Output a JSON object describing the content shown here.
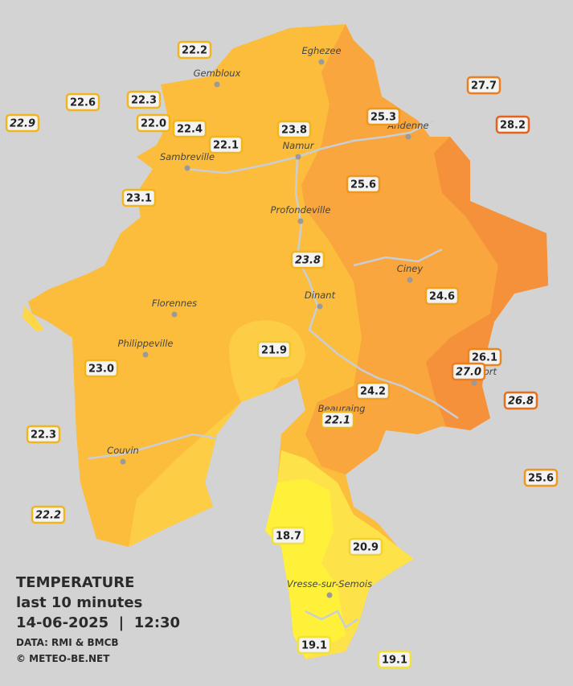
{
  "places": [
    "Eghezee",
    "Gembloux",
    "Andenne",
    "Namur",
    "Sambreville",
    "Profondeville",
    "Ciney",
    "Dinant",
    "Florennes",
    "Philippeville",
    "Beauraing",
    "Rochefort",
    "Couvin",
    "Vresse-sur-Semois"
  ],
  "stations": [
    {
      "text": "22.2",
      "color": "#f2b51d"
    },
    {
      "text": "22.6",
      "color": "#f2b51d"
    },
    {
      "text": "22.9",
      "color": "#f2b51d"
    },
    {
      "text": "22.3",
      "color": "#f2b51d"
    },
    {
      "text": "22.0",
      "color": "#f2b51d"
    },
    {
      "text": "22.4",
      "color": "#f2b51d"
    },
    {
      "text": "22.1",
      "color": "#f2b51d"
    },
    {
      "text": "23.8",
      "color": "#f2b51d"
    },
    {
      "text": "25.3",
      "color": "#f0961e"
    },
    {
      "text": "27.7",
      "color": "#ee7d1c"
    },
    {
      "text": "28.2",
      "color": "#e8601a"
    },
    {
      "text": "23.1",
      "color": "#f2b51d"
    },
    {
      "text": "25.6",
      "color": "#f0961e"
    },
    {
      "text": "23.8",
      "color": "#f2b51d"
    },
    {
      "text": "24.6",
      "color": "#f0a21f"
    },
    {
      "text": "21.9",
      "color": "#f2c72a"
    },
    {
      "text": "26.1",
      "color": "#ee851c"
    },
    {
      "text": "27.0",
      "color": "#ee7d1c"
    },
    {
      "text": "24.2",
      "color": "#f0a21f"
    },
    {
      "text": "26.8",
      "color": "#ea6d1b"
    },
    {
      "text": "22.1",
      "color": "#f2b51d"
    },
    {
      "text": "23.0",
      "color": "#f2b51d"
    },
    {
      "text": "22.3",
      "color": "#f2b51d"
    },
    {
      "text": "25.6",
      "color": "#f0961e"
    },
    {
      "text": "22.2",
      "color": "#f2b51d"
    },
    {
      "text": "18.7",
      "color": "#f3e13a"
    },
    {
      "text": "20.9",
      "color": "#f2d230"
    },
    {
      "text": "19.1",
      "color": "#f3e13a"
    },
    {
      "text": "19.1",
      "color": "#f3e13a"
    }
  ],
  "legend": {
    "title": "TEMPERATURE",
    "period": "last 10 minutes",
    "timestamp": "14-06-2025  |  12:30",
    "source": "DATA: RMI & BMCB",
    "copyright": "© METEO-BE.NET"
  }
}
